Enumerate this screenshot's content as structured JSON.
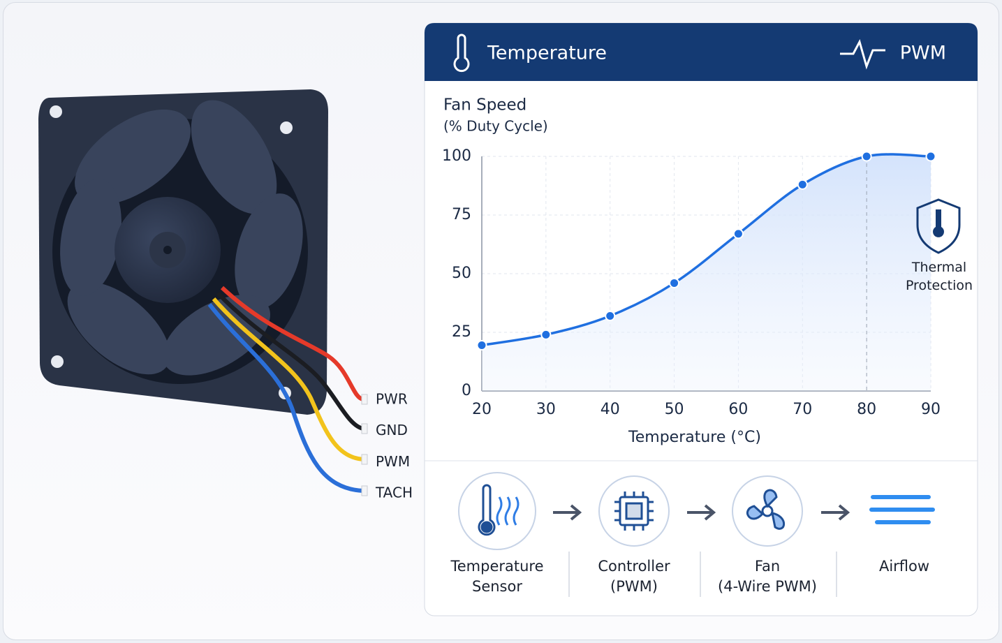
{
  "header": {
    "left": "Temperature",
    "right": "PWM"
  },
  "wires": {
    "labels": [
      "PWR",
      "GND",
      "PWM",
      "TACH"
    ]
  },
  "chart_data": {
    "type": "line",
    "title": "Fan Speed",
    "subtitle": "(% Duty Cycle)",
    "x_label": "Temperature (°C)",
    "x": [
      20,
      30,
      40,
      50,
      60,
      70,
      80,
      90
    ],
    "series": [
      {
        "name": "Fan Speed",
        "color": "#1f6fe0",
        "values": [
          19.5,
          24,
          32,
          46,
          67,
          88,
          100,
          100
        ]
      }
    ],
    "xlim": [
      20,
      90
    ],
    "xticks": [
      20,
      30,
      40,
      50,
      60,
      70,
      80,
      90
    ],
    "ylim": [
      0,
      100
    ],
    "yticks": [
      0,
      25,
      50,
      75,
      100
    ],
    "grid": true,
    "annotation": "Thermal Protection"
  },
  "flow": {
    "steps": [
      "Temperature\nSensor",
      "Controller\n(PWM)",
      "Fan\n(4-Wire PWM)",
      "Airflow"
    ]
  }
}
